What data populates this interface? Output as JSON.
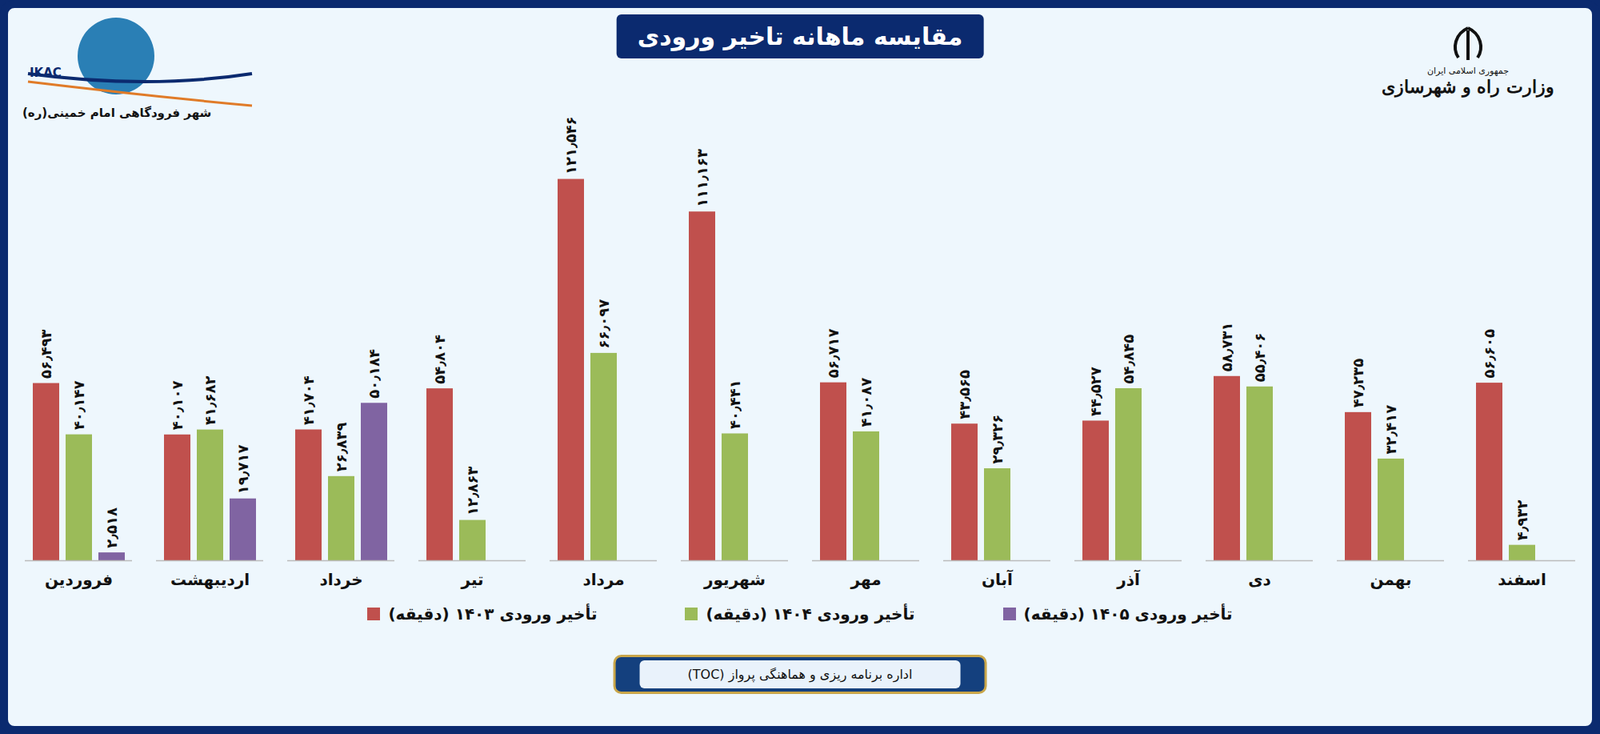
{
  "chart_data": {
    "type": "bar",
    "title": "مقایسه ماهانه تاخیر ورودی",
    "annotations": [
      "IKAC",
      "شهر فرودگاهی امام خمینی(ره)",
      "جمهوری اسلامی ایران",
      "وزارت راه و شهرسازی",
      "اداره برنامه ریزی و هماهنگی پرواز (TOC)"
    ],
    "categories": [
      "فروردین",
      "اردیبهشت",
      "خرداد",
      "تیر",
      "مرداد",
      "شهریور",
      "مهر",
      "آبان",
      "آذر",
      "دی",
      "بهمن",
      "اسفند"
    ],
    "series": [
      {
        "name": "تأخیر ورودی ۱۴۰۳ (دقیقه)",
        "color": "#c0504d",
        "values": [
          56.493,
          40.107,
          41.704,
          54.804,
          121.546,
          111.163,
          56.717,
          43.565,
          44.527,
          58.731,
          47.235,
          56.605
        ],
        "value_labels": [
          "۵۶٫۴۹۳",
          "۴۰٫۱۰۷",
          "۴۱٫۷۰۴",
          "۵۴٫۸۰۴",
          "۱۲۱٫۵۴۶",
          "۱۱۱٫۱۶۳",
          "۵۶٫۷۱۷",
          "۴۳٫۵۶۵",
          "۴۴٫۵۲۷",
          "۵۸٫۷۳۱",
          "۴۷٫۲۳۵",
          "۵۶٫۶۰۵"
        ]
      },
      {
        "name": "تأخیر ورودی ۱۴۰۴ (دقیقه)",
        "color": "#9bbb59",
        "values": [
          40.147,
          41.682,
          26.839,
          12.863,
          66.097,
          40.441,
          41.087,
          29.326,
          54.845,
          55.406,
          32.417,
          4.932
        ],
        "value_labels": [
          "۴۰٫۱۴۷",
          "۴۱٫۶۸۲",
          "۲۶٫۸۳۹",
          "۱۲٫۸۶۳",
          "۶۶٫۰۹۷",
          "۴۰٫۴۴۱",
          "۴۱٫۰۸۷",
          "۲۹٫۳۲۶",
          "۵۴٫۸۴۵",
          "۵۵٫۴۰۶",
          "۳۲٫۴۱۷",
          "۴٫۹۳۲"
        ]
      },
      {
        "name": "تأخیر ورودی ۱۴۰۵ (دقیقه)",
        "color": "#8064a2",
        "values": [
          2.518,
          19.717,
          50.184,
          null,
          null,
          null,
          null,
          null,
          null,
          null,
          null,
          null
        ],
        "value_labels": [
          "۲٫۵۱۸",
          "۱۹٫۷۱۷",
          "۵۰٫۱۸۴",
          null,
          null,
          null,
          null,
          null,
          null,
          null,
          null,
          null
        ]
      }
    ],
    "ylim": [
      0,
      125
    ],
    "grid": false,
    "data_labels": true,
    "tick_labels": "x",
    "legend": "bottom"
  }
}
